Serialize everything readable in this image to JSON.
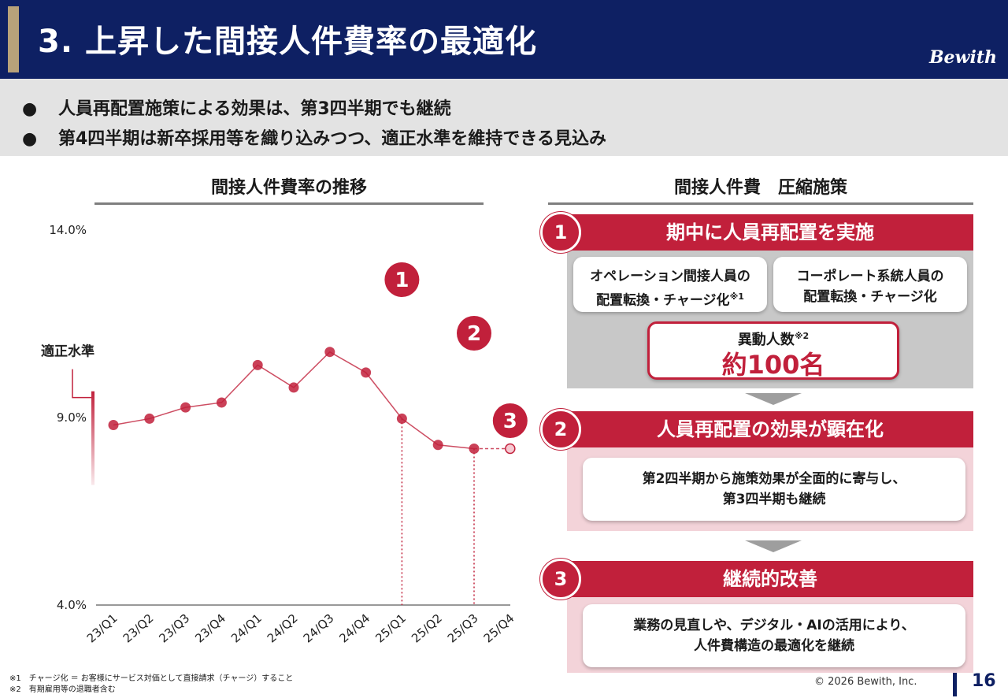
{
  "header": {
    "title": "3. 上昇した間接人件費率の最適化",
    "brand": "Bewith"
  },
  "summary": {
    "bullet": "●",
    "items": [
      "人員再配置施策による効果は、第3四半期でも継続",
      "第4四半期は新卒採用等を織り込みつつ、適正水準を維持できる見込み"
    ]
  },
  "left_section": {
    "title": "間接人件費率の推移"
  },
  "right_section": {
    "title": "間接人件費　圧縮施策"
  },
  "chart_data": {
    "type": "line",
    "categories": [
      "23/Q1",
      "23/Q2",
      "23/Q3",
      "23/Q4",
      "24/Q1",
      "24/Q2",
      "24/Q3",
      "24/Q4",
      "25/Q1",
      "25/Q2",
      "25/Q3",
      "25/Q4"
    ],
    "series": [
      {
        "values": [
          8.8,
          8.97,
          9.27,
          9.4,
          10.4,
          9.8,
          10.75,
          10.2,
          8.97,
          8.27,
          8.17,
          8.17
        ],
        "forecast_from_index": 11
      }
    ],
    "ylim": [
      4.0,
      14.0
    ],
    "y_ticks": [
      "14.0%",
      "9.0%",
      "4.0%"
    ],
    "y_tick_values": [
      14.0,
      9.0,
      4.0
    ],
    "optimal_range": {
      "label": "適正水準",
      "top": 9.7,
      "bottom": 7.2
    },
    "markers": [
      {
        "label": "1",
        "category_index": 8
      },
      {
        "label": "2",
        "category_index": 10
      },
      {
        "label": "3",
        "category_index": 11
      }
    ],
    "colors": {
      "line": "#c1203b",
      "point": "#c1203b",
      "axis": "#333333",
      "band": "#c1203b"
    }
  },
  "steps": [
    {
      "num": "1",
      "title": "期中に人員再配置を実施",
      "cards": [
        {
          "line1": "オペレーション間接人員の",
          "line2": "配置転換・チャージ化",
          "note": "※1"
        },
        {
          "line1": "コーポレート系統人員の",
          "line2": "配置転換・チャージ化",
          "note": ""
        }
      ],
      "highlight": {
        "label": "異動人数",
        "note": "※2",
        "value": "約100名"
      }
    },
    {
      "num": "2",
      "title": "人員再配置の効果が顕在化",
      "card": {
        "line1": "第2四半期から施策効果が全面的に寄与し、",
        "line2": "第3四半期も継続"
      }
    },
    {
      "num": "3",
      "title": "継続的改善",
      "card": {
        "line1": "業務の見直しや、デジタル・AIの活用により、",
        "line2": "人件費構造の最適化を継続"
      }
    }
  ],
  "footnotes": [
    "※1　チャージ化 ＝ お客様にサービス対価として直接請求（チャージ）すること",
    "※2　有期雇用等の退職者含む"
  ],
  "footer": {
    "copyright": "© 2026 Bewith, Inc.",
    "page": "16"
  },
  "theme": {
    "navy": "#0e2063",
    "red": "#c1203b",
    "gold": "#b8a27a",
    "gray": "#c8c8c8",
    "pink": "#f3d3d9"
  }
}
